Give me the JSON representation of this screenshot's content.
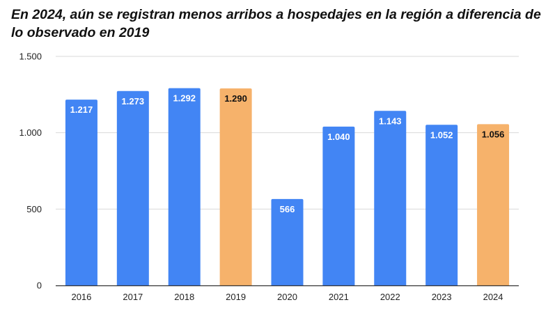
{
  "chart_data": {
    "type": "bar",
    "title": "En 2024, aún se registran menos arribos a hospedajes en la región a diferencia de lo observado en 2019",
    "categories": [
      "2016",
      "2017",
      "2018",
      "2019",
      "2020",
      "2021",
      "2022",
      "2023",
      "2024"
    ],
    "values": [
      1217,
      1273,
      1292,
      1290,
      566,
      1040,
      1143,
      1052,
      1056
    ],
    "data_labels": [
      "1.217",
      "1.273",
      "1.292",
      "1.290",
      "566",
      "1.040",
      "1.143",
      "1.052",
      "1.056"
    ],
    "highlighted": [
      "2019",
      "2024"
    ],
    "ylim": [
      0,
      1500
    ],
    "yticks": [
      0,
      500,
      1000,
      1500
    ],
    "ytick_labels": [
      "0",
      "500",
      "1.000",
      "1.500"
    ],
    "grid": true,
    "legend": "none",
    "colors": {
      "bar": "#4285F4",
      "highlight": "#F6B26B",
      "label_on_bar": "#FFFFFF",
      "label_on_highlight": "#111111",
      "grid": "#D9D9D9",
      "axis": "#333333"
    }
  }
}
